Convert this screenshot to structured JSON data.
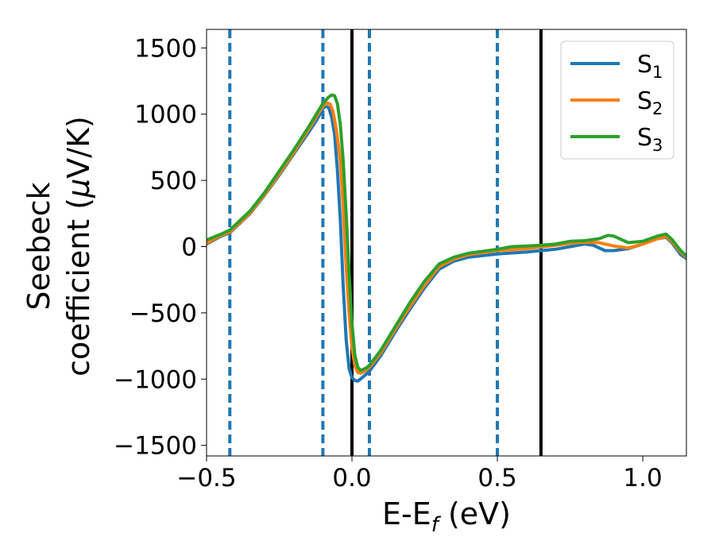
{
  "chart_data": {
    "type": "line",
    "title": "",
    "xlabel": {
      "base": "E-E",
      "sub": "f",
      "tail": " (eV)"
    },
    "ylabel": {
      "line1": "Seebeck",
      "line2_text": "coefficient  (",
      "line2_mu": "μ",
      "line2_tail": "V/K)"
    },
    "xlim": [
      -0.5,
      1.15
    ],
    "ylim": [
      -1580,
      1640
    ],
    "xticks": [
      -0.5,
      0.0,
      0.5,
      1.0
    ],
    "xtick_labels": [
      "−0.5",
      "0.0",
      "0.5",
      "1.0"
    ],
    "yticks": [
      -1500,
      -1000,
      -500,
      0,
      500,
      1000,
      1500
    ],
    "ytick_labels": [
      "−1500",
      "−1000",
      "−500",
      "0",
      "500",
      "1000",
      "1500"
    ],
    "grid": false,
    "legend": {
      "placement": "top-right"
    },
    "vlines_dashed": {
      "color": "#1f77b4",
      "x": [
        -0.42,
        -0.1,
        0.06,
        0.5
      ]
    },
    "vlines_solid": {
      "color": "#000000",
      "x": [
        0.0,
        0.65
      ]
    },
    "series": [
      {
        "name": "S",
        "sub": "1",
        "color": "#1f77b4",
        "points": [
          [
            -0.5,
            20
          ],
          [
            -0.45,
            80
          ],
          [
            -0.42,
            105
          ],
          [
            -0.35,
            250
          ],
          [
            -0.3,
            390
          ],
          [
            -0.25,
            540
          ],
          [
            -0.2,
            700
          ],
          [
            -0.15,
            860
          ],
          [
            -0.12,
            960
          ],
          [
            -0.1,
            1045
          ],
          [
            -0.09,
            1060
          ],
          [
            -0.08,
            1050
          ],
          [
            -0.07,
            980
          ],
          [
            -0.06,
            850
          ],
          [
            -0.05,
            580
          ],
          [
            -0.04,
            200
          ],
          [
            -0.03,
            -300
          ],
          [
            -0.02,
            -700
          ],
          [
            -0.01,
            -920
          ],
          [
            0.0,
            -990
          ],
          [
            0.01,
            -1010
          ],
          [
            0.02,
            -1015
          ],
          [
            0.04,
            -980
          ],
          [
            0.06,
            -940
          ],
          [
            0.1,
            -820
          ],
          [
            0.15,
            -640
          ],
          [
            0.2,
            -470
          ],
          [
            0.25,
            -310
          ],
          [
            0.3,
            -170
          ],
          [
            0.35,
            -110
          ],
          [
            0.4,
            -80
          ],
          [
            0.5,
            -55
          ],
          [
            0.6,
            -40
          ],
          [
            0.7,
            -20
          ],
          [
            0.75,
            0
          ],
          [
            0.8,
            20
          ],
          [
            0.83,
            10
          ],
          [
            0.87,
            -30
          ],
          [
            0.9,
            -30
          ],
          [
            0.95,
            -15
          ],
          [
            1.0,
            20
          ],
          [
            1.05,
            60
          ],
          [
            1.08,
            70
          ],
          [
            1.1,
            30
          ],
          [
            1.13,
            -60
          ],
          [
            1.15,
            -90
          ]
        ]
      },
      {
        "name": "S",
        "sub": "2",
        "color": "#ff7f0e",
        "points": [
          [
            -0.5,
            25
          ],
          [
            -0.45,
            85
          ],
          [
            -0.42,
            110
          ],
          [
            -0.35,
            255
          ],
          [
            -0.3,
            395
          ],
          [
            -0.25,
            550
          ],
          [
            -0.2,
            710
          ],
          [
            -0.15,
            880
          ],
          [
            -0.12,
            990
          ],
          [
            -0.1,
            1060
          ],
          [
            -0.085,
            1085
          ],
          [
            -0.075,
            1075
          ],
          [
            -0.065,
            1020
          ],
          [
            -0.055,
            900
          ],
          [
            -0.04,
            650
          ],
          [
            -0.03,
            300
          ],
          [
            -0.02,
            -150
          ],
          [
            -0.01,
            -500
          ],
          [
            0.0,
            -760
          ],
          [
            0.01,
            -900
          ],
          [
            0.02,
            -950
          ],
          [
            0.03,
            -955
          ],
          [
            0.05,
            -930
          ],
          [
            0.06,
            -910
          ],
          [
            0.1,
            -800
          ],
          [
            0.15,
            -620
          ],
          [
            0.2,
            -450
          ],
          [
            0.25,
            -290
          ],
          [
            0.3,
            -150
          ],
          [
            0.35,
            -95
          ],
          [
            0.4,
            -60
          ],
          [
            0.5,
            -30
          ],
          [
            0.6,
            -15
          ],
          [
            0.7,
            10
          ],
          [
            0.75,
            25
          ],
          [
            0.8,
            35
          ],
          [
            0.85,
            30
          ],
          [
            0.9,
            5
          ],
          [
            0.95,
            -10
          ],
          [
            1.0,
            20
          ],
          [
            1.05,
            60
          ],
          [
            1.08,
            75
          ],
          [
            1.1,
            40
          ],
          [
            1.13,
            -40
          ],
          [
            1.15,
            -80
          ]
        ]
      },
      {
        "name": "S",
        "sub": "3",
        "color": "#2ca02c",
        "points": [
          [
            -0.5,
            50
          ],
          [
            -0.45,
            95
          ],
          [
            -0.42,
            125
          ],
          [
            -0.35,
            270
          ],
          [
            -0.3,
            410
          ],
          [
            -0.25,
            570
          ],
          [
            -0.2,
            730
          ],
          [
            -0.15,
            900
          ],
          [
            -0.12,
            1010
          ],
          [
            -0.1,
            1080
          ],
          [
            -0.08,
            1130
          ],
          [
            -0.07,
            1145
          ],
          [
            -0.06,
            1140
          ],
          [
            -0.05,
            1080
          ],
          [
            -0.04,
            920
          ],
          [
            -0.03,
            650
          ],
          [
            -0.02,
            250
          ],
          [
            -0.01,
            -200
          ],
          [
            0.0,
            -580
          ],
          [
            0.01,
            -820
          ],
          [
            0.02,
            -910
          ],
          [
            0.03,
            -935
          ],
          [
            0.05,
            -915
          ],
          [
            0.06,
            -895
          ],
          [
            0.1,
            -780
          ],
          [
            0.15,
            -600
          ],
          [
            0.2,
            -420
          ],
          [
            0.25,
            -260
          ],
          [
            0.3,
            -130
          ],
          [
            0.35,
            -80
          ],
          [
            0.4,
            -50
          ],
          [
            0.5,
            -20
          ],
          [
            0.55,
            0
          ],
          [
            0.6,
            5
          ],
          [
            0.65,
            10
          ],
          [
            0.7,
            20
          ],
          [
            0.75,
            40
          ],
          [
            0.8,
            45
          ],
          [
            0.85,
            60
          ],
          [
            0.88,
            85
          ],
          [
            0.9,
            80
          ],
          [
            0.95,
            30
          ],
          [
            1.0,
            40
          ],
          [
            1.05,
            80
          ],
          [
            1.08,
            95
          ],
          [
            1.1,
            55
          ],
          [
            1.13,
            -30
          ],
          [
            1.15,
            -70
          ]
        ]
      }
    ]
  }
}
